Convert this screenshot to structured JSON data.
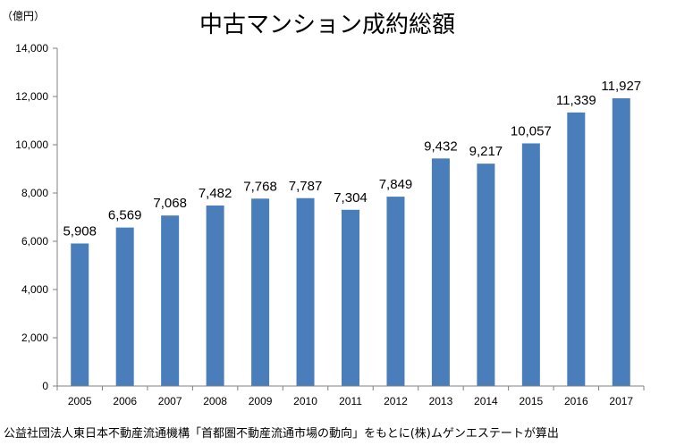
{
  "chart_data": {
    "type": "bar",
    "title": "中古マンション成約総額",
    "ylabel": "（億円）",
    "xlabel": "",
    "categories": [
      "2005",
      "2006",
      "2007",
      "2008",
      "2009",
      "2010",
      "2011",
      "2012",
      "2013",
      "2014",
      "2015",
      "2016",
      "2017"
    ],
    "values": [
      5908,
      6569,
      7068,
      7482,
      7768,
      7787,
      7304,
      7849,
      9432,
      9217,
      10057,
      11339,
      11927
    ],
    "value_labels": [
      "5,908",
      "6,569",
      "7,068",
      "7,482",
      "7,768",
      "7,787",
      "7,304",
      "7,849",
      "9,432",
      "9,217",
      "10,057",
      "11,339",
      "11,927"
    ],
    "ylim": [
      0,
      14000
    ],
    "yticks": [
      0,
      2000,
      4000,
      6000,
      8000,
      10000,
      12000,
      14000
    ],
    "ytick_labels": [
      "0",
      "2,000",
      "4,000",
      "6,000",
      "8,000",
      "10,000",
      "12,000",
      "14,000"
    ],
    "grid": false,
    "legend": "none",
    "bar_color": "#4a7ebb",
    "source": "公益社団法人東日本不動産流通機構「首都圏不動産流通市場の動向」をもとに(株)ムゲンエステートが算出"
  }
}
